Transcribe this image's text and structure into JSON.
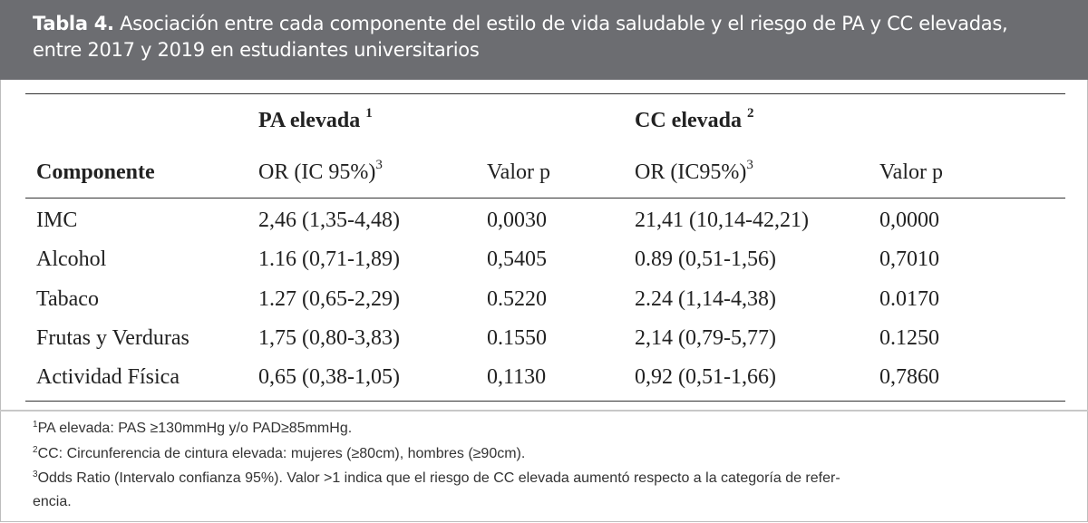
{
  "title": {
    "label": "Tabla 4.",
    "text_line1": "Asociación entre cada componente del estilo de vida saludable y el riesgo de PA y CC elevadas,",
    "text_line2": "entre 2017 y 2019 en estudiantes universitarios"
  },
  "groups": [
    {
      "label": "PA elevada",
      "sup": "1"
    },
    {
      "label": "CC elevada",
      "sup": "2"
    }
  ],
  "columns": {
    "component": "Componente",
    "or1": "OR (IC 95%)",
    "or1_sup": "3",
    "p1": "Valor p",
    "or2": "OR (IC95%)",
    "or2_sup": "3",
    "p2": "Valor p"
  },
  "rows": [
    {
      "component": "IMC",
      "or1": "2,46 (1,35-4,48)",
      "p1": "0,0030",
      "or2": "21,41 (10,14-42,21)",
      "p2": "0,0000"
    },
    {
      "component": "Alcohol",
      "or1": "1.16 (0,71-1,89)",
      "p1": "0,5405",
      "or2": "0.89 (0,51-1,56)",
      "p2": "0,7010"
    },
    {
      "component": "Tabaco",
      "or1": "1.27 (0,65-2,29)",
      "p1": "0.5220",
      "or2": "2.24 (1,14-4,38)",
      "p2": "0.0170"
    },
    {
      "component": "Frutas y Verduras",
      "or1": "1,75 (0,80-3,83)",
      "p1": "0.1550",
      "or2": "2,14 (0,79-5,77)",
      "p2": "0.1250"
    },
    {
      "component": "Actividad Física",
      "or1": "0,65 (0,38-1,05)",
      "p1": "0,1130",
      "or2": "0,92 (0,51-1,66)",
      "p2": "0,7860"
    }
  ],
  "footnotes": [
    {
      "sup": "1",
      "text": "PA elevada: PAS ≥130mmHg y/o PAD≥85mmHg."
    },
    {
      "sup": "2",
      "text": "CC: Circunferencia de cintura elevada: mujeres (≥80cm), hombres (≥90cm)."
    },
    {
      "sup": "3",
      "text": "Odds Ratio (Intervalo confianza 95%). Valor >1 indica que el riesgo de CC elevada aumentó respecto a la categoría de refer-"
    },
    {
      "sup": "",
      "text": "encia."
    }
  ]
}
